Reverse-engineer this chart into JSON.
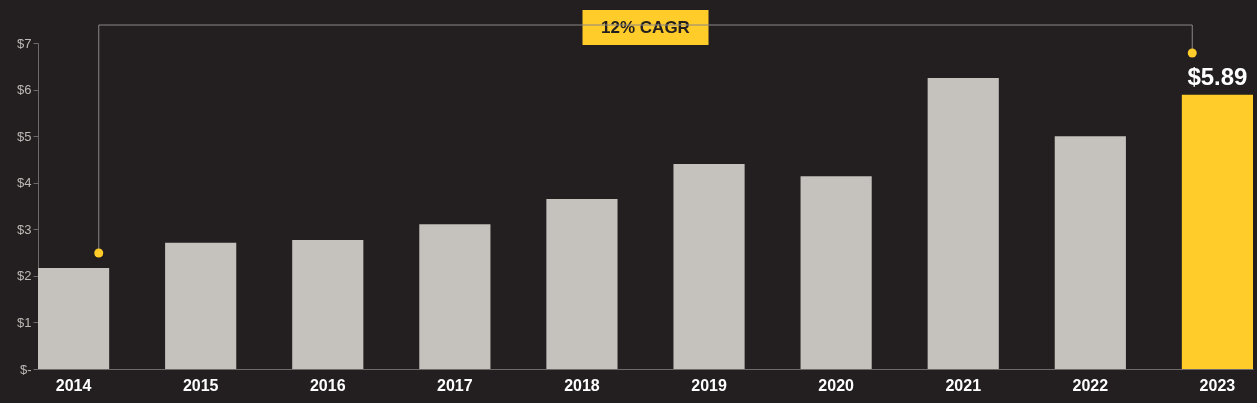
{
  "chart_data": {
    "type": "bar",
    "categories": [
      "2014",
      "2015",
      "2016",
      "2017",
      "2018",
      "2019",
      "2020",
      "2021",
      "2022",
      "2023"
    ],
    "values": [
      2.17,
      2.71,
      2.77,
      3.11,
      3.65,
      4.4,
      4.14,
      6.25,
      5.0,
      5.89
    ],
    "colors": [
      "#c5c1bd",
      "#c5c1bd",
      "#c5c1bd",
      "#c5c1bd",
      "#c5c1bd",
      "#c5c1bd",
      "#c5c1bd",
      "#c5c1bd",
      "#c5c1bd",
      "#ffcc29"
    ],
    "value_labels": [
      null,
      null,
      null,
      null,
      null,
      null,
      null,
      null,
      null,
      "$5.89"
    ],
    "ylim": [
      0,
      7
    ],
    "yticks": [
      {
        "value": 0,
        "label": "$-"
      },
      {
        "value": 1,
        "label": "$1"
      },
      {
        "value": 2,
        "label": "$2"
      },
      {
        "value": 3,
        "label": "$3"
      },
      {
        "value": 4,
        "label": "$4"
      },
      {
        "value": 5,
        "label": "$5"
      },
      {
        "value": 6,
        "label": "$6"
      },
      {
        "value": 7,
        "label": "$7"
      }
    ],
    "annotations": [
      "12% CAGR"
    ],
    "grid": false
  }
}
